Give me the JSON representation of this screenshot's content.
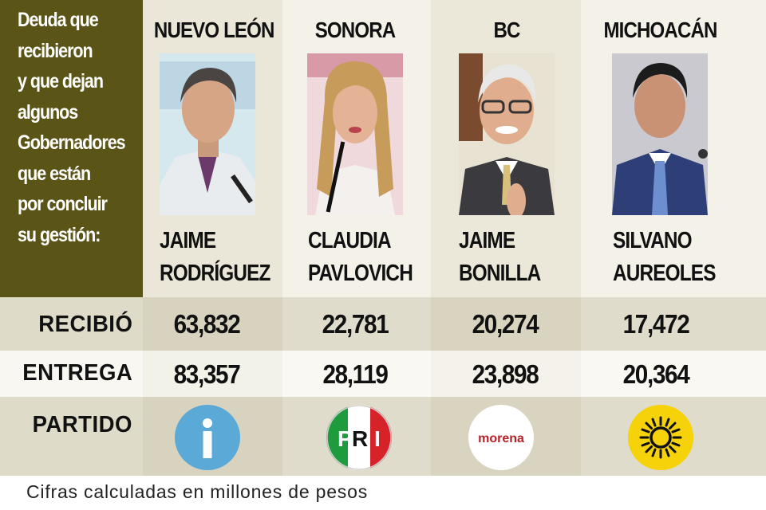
{
  "intro": {
    "text": "Deuda que\nrecibieron\ny que dejan\nalgunos\nGobernadores\nque están\npor concluir\nsu gestión:"
  },
  "row_labels": {
    "received": "RECIBIÓ",
    "delivered": "ENTREGA",
    "party": "PARTIDO"
  },
  "governors": [
    {
      "state": "NUEVO LEÓN",
      "name": "JAIME\nRODRÍGUEZ",
      "received": "63,832",
      "delivered": "83,357",
      "party_logo": "independiente-logo",
      "party_text": "i",
      "photo": "photo-jaime-rodriguez"
    },
    {
      "state": "SONORA",
      "name": "CLAUDIA\nPAVLOVICH",
      "received": "22,781",
      "delivered": "28,119",
      "party_logo": "pri-logo",
      "party_text": "PRI",
      "photo": "photo-claudia-pavlovich"
    },
    {
      "state": "BC",
      "name": "JAIME\nBONILLA",
      "received": "20,274",
      "delivered": "23,898",
      "party_logo": "morena-logo",
      "party_text": "morena",
      "photo": "photo-jaime-bonilla"
    },
    {
      "state": "MICHOACÁN",
      "name": "SILVANO\nAUREOLES",
      "received": "17,472",
      "delivered": "20,364",
      "party_logo": "prd-logo",
      "party_text": "",
      "photo": "photo-silvano-aureoles"
    }
  ],
  "colors": {
    "intro_bg": "#5a5416",
    "ind_blue": "#5aa9d6",
    "pri_green": "#1e9b3c",
    "pri_red": "#d6232a",
    "morena_red": "#b4232a",
    "prd_yellow": "#f5d20a"
  },
  "footnote": "Cifras calculadas en millones de pesos"
}
